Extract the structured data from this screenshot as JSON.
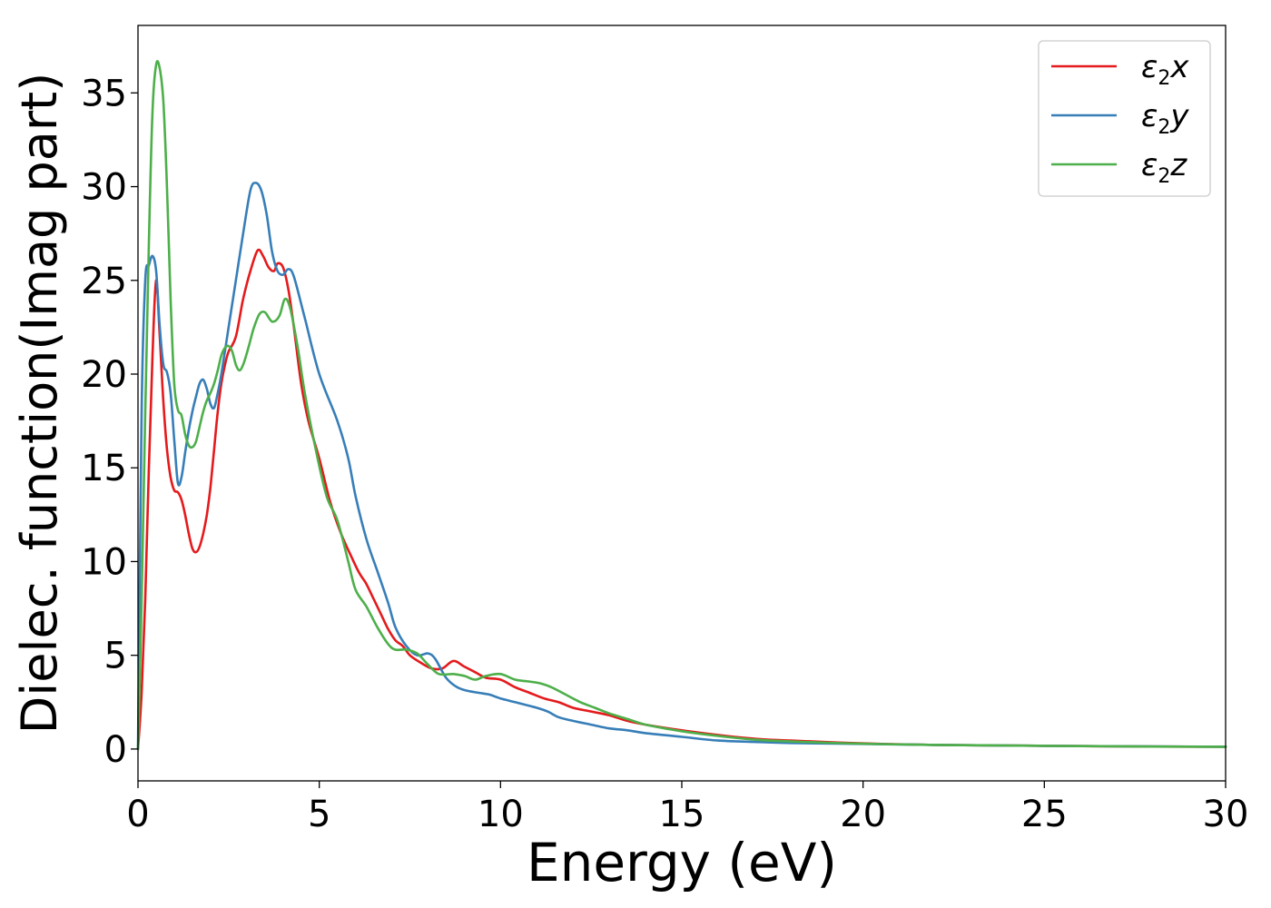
{
  "chart_data": {
    "type": "line",
    "title": "",
    "xlabel": "Energy (eV)",
    "ylabel": "Dielec. function(Imag part)",
    "xlim": [
      0,
      30
    ],
    "ylim": [
      -1.7,
      38.6
    ],
    "xticks": [
      0,
      5,
      10,
      15,
      20,
      25,
      30
    ],
    "yticks": [
      0,
      5,
      10,
      15,
      20,
      25,
      30,
      35
    ],
    "grid": false,
    "legend_position": "top-right",
    "series": [
      {
        "name": "ε2x",
        "legend_base": "ε",
        "legend_sub": "2",
        "legend_suffix": "x",
        "color": "#e41a1c",
        "x": [
          0,
          0.1,
          0.2,
          0.3,
          0.4,
          0.5,
          0.6,
          0.7,
          0.8,
          0.9,
          1.0,
          1.1,
          1.2,
          1.3,
          1.4,
          1.5,
          1.6,
          1.7,
          1.8,
          1.9,
          2.0,
          2.1,
          2.2,
          2.3,
          2.4,
          2.5,
          2.7,
          2.9,
          3.1,
          3.3,
          3.45,
          3.6,
          3.75,
          3.85,
          4.0,
          4.15,
          4.3,
          4.5,
          4.7,
          5.0,
          5.3,
          5.6,
          5.9,
          6.1,
          6.3,
          6.5,
          6.7,
          6.9,
          7.1,
          7.3,
          7.5,
          7.8,
          8.1,
          8.4,
          8.7,
          9.0,
          9.3,
          9.6,
          10.0,
          10.4,
          10.8,
          11.2,
          11.6,
          12.0,
          12.5,
          13.0,
          13.5,
          14.0,
          15.0,
          16.0,
          17.0,
          18.0,
          20.0,
          22.0,
          25.0,
          28.0,
          30.0
        ],
        "values": [
          0,
          3,
          8,
          15,
          21,
          25,
          22,
          18.5,
          16,
          14.5,
          13.8,
          13.7,
          13.3,
          12.5,
          11.5,
          10.7,
          10.5,
          10.8,
          11.5,
          12.5,
          14,
          16,
          18,
          19.5,
          20.5,
          21.2,
          22,
          24,
          25.5,
          26.6,
          26.3,
          25.7,
          25.5,
          25.9,
          25.7,
          24.5,
          22.5,
          19.5,
          17.5,
          15.5,
          13.2,
          11.5,
          10.2,
          9.4,
          8.8,
          8,
          7.2,
          6.4,
          5.8,
          5.5,
          5.0,
          4.6,
          4.3,
          4.3,
          4.7,
          4.4,
          4.1,
          3.8,
          3.7,
          3.3,
          3.0,
          2.7,
          2.5,
          2.2,
          2.0,
          1.8,
          1.5,
          1.3,
          1.0,
          0.75,
          0.55,
          0.45,
          0.3,
          0.22,
          0.17,
          0.13,
          0.12
        ]
      },
      {
        "name": "ε2y",
        "legend_base": "ε",
        "legend_sub": "2",
        "legend_suffix": "y",
        "color": "#377eb8",
        "x": [
          0,
          0.1,
          0.2,
          0.3,
          0.4,
          0.5,
          0.6,
          0.7,
          0.8,
          0.9,
          1.0,
          1.1,
          1.2,
          1.3,
          1.4,
          1.5,
          1.6,
          1.7,
          1.8,
          1.9,
          2.0,
          2.1,
          2.2,
          2.3,
          2.5,
          2.7,
          2.9,
          3.1,
          3.25,
          3.4,
          3.55,
          3.7,
          3.85,
          4.0,
          4.15,
          4.3,
          4.6,
          5.0,
          5.5,
          5.8,
          6.0,
          6.3,
          6.6,
          6.9,
          7.1,
          7.4,
          7.7,
          8.0,
          8.2,
          8.5,
          8.8,
          9.1,
          9.4,
          9.7,
          10.0,
          10.4,
          10.8,
          11.0,
          11.3,
          11.6,
          12.0,
          12.5,
          13.0,
          13.5,
          14.0,
          15.0,
          16.0,
          17.0,
          18.0,
          20.0,
          22.0,
          25.0,
          28.0,
          30.0
        ],
        "values": [
          0,
          18,
          25,
          25.8,
          26.3,
          25.5,
          22.5,
          20.5,
          20.1,
          19,
          16.5,
          14.2,
          14.5,
          15.8,
          17,
          18,
          18.8,
          19.5,
          19.7,
          19.2,
          18.4,
          18.2,
          19,
          20,
          22.5,
          25,
          27.5,
          29.8,
          30.2,
          29.8,
          28.5,
          26.5,
          25.5,
          25.3,
          25.6,
          25.2,
          23,
          20,
          17.5,
          15.5,
          13.5,
          11.2,
          9.5,
          7.8,
          6.5,
          5.5,
          5.0,
          5.1,
          4.8,
          3.8,
          3.3,
          3.1,
          3.0,
          2.9,
          2.7,
          2.5,
          2.3,
          2.2,
          2.0,
          1.7,
          1.5,
          1.3,
          1.1,
          1.0,
          0.85,
          0.65,
          0.45,
          0.38,
          0.32,
          0.27,
          0.22,
          0.17,
          0.14,
          0.12
        ]
      },
      {
        "name": "ε2z",
        "legend_base": "ε",
        "legend_sub": "2",
        "legend_suffix": "z",
        "color": "#4daf4a",
        "x": [
          0,
          0.1,
          0.2,
          0.3,
          0.4,
          0.5,
          0.6,
          0.7,
          0.8,
          0.9,
          1.0,
          1.1,
          1.2,
          1.3,
          1.4,
          1.5,
          1.6,
          1.7,
          1.8,
          1.9,
          2.0,
          2.1,
          2.2,
          2.3,
          2.4,
          2.5,
          2.6,
          2.7,
          2.8,
          2.9,
          3.0,
          3.1,
          3.2,
          3.35,
          3.5,
          3.7,
          3.9,
          4.05,
          4.2,
          4.4,
          4.6,
          4.9,
          5.2,
          5.5,
          5.8,
          6.0,
          6.3,
          6.6,
          6.9,
          7.1,
          7.4,
          7.7,
          8.0,
          8.3,
          8.7,
          9.0,
          9.3,
          9.6,
          10.0,
          10.4,
          10.8,
          11.1,
          11.4,
          11.8,
          12.2,
          12.6,
          13.0,
          13.5,
          14.0,
          15.0,
          16.0,
          17.0,
          18.0,
          20.0,
          22.0,
          25.0,
          28.0,
          30.0
        ],
        "values": [
          0,
          8,
          18,
          27,
          34,
          36.5,
          36.3,
          34.5,
          30,
          24,
          19.5,
          18.1,
          17.8,
          16.8,
          16.2,
          16.1,
          16.4,
          17.2,
          18.0,
          18.6,
          19.0,
          19.5,
          20.2,
          21.0,
          21.4,
          21.5,
          21.2,
          20.5,
          20.2,
          20.5,
          21.1,
          21.8,
          22.5,
          23.2,
          23.3,
          22.8,
          23.1,
          24.0,
          23.5,
          21.5,
          19,
          16,
          13.5,
          12.2,
          10,
          8.5,
          7.6,
          6.5,
          5.6,
          5.3,
          5.3,
          5.1,
          4.5,
          4.0,
          4.0,
          3.9,
          3.7,
          3.9,
          4.0,
          3.7,
          3.6,
          3.5,
          3.3,
          2.9,
          2.5,
          2.2,
          1.9,
          1.6,
          1.3,
          0.95,
          0.7,
          0.5,
          0.4,
          0.28,
          0.22,
          0.17,
          0.13,
          0.12
        ]
      }
    ]
  }
}
